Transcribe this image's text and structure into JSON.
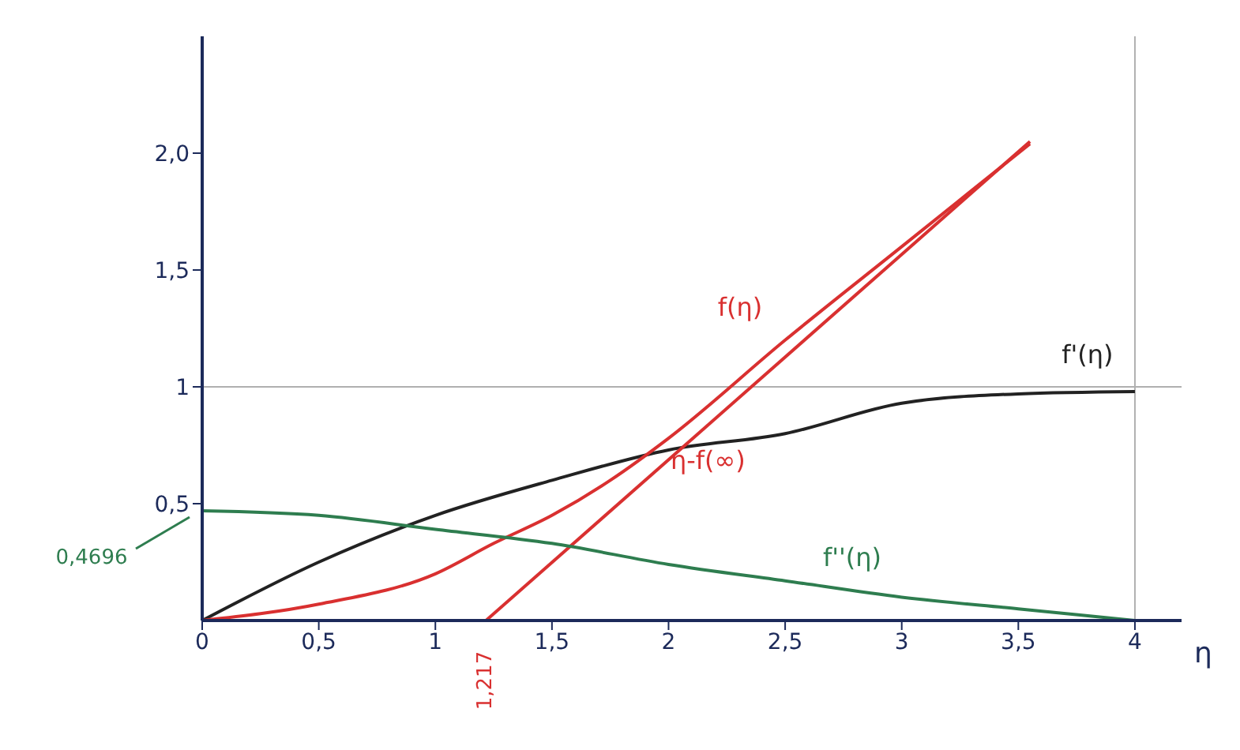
{
  "chart_data": {
    "type": "line",
    "xlabel": "η",
    "xlim": [
      0,
      4.2
    ],
    "ylim": [
      0,
      2.5
    ],
    "xticks": [
      0,
      {
        "value": 0.5,
        "label": "0,5"
      },
      1,
      {
        "value": 1.5,
        "label": "1,5"
      },
      2,
      {
        "value": 2.5,
        "label": "2,5"
      },
      3,
      {
        "value": 3.5,
        "label": "3,5"
      },
      4
    ],
    "yticks": [
      {
        "value": 0.5,
        "label": "0,5"
      },
      1,
      {
        "value": 1.5,
        "label": "1,5"
      },
      {
        "value": 2,
        "label": "2,0"
      }
    ],
    "grid": false,
    "series": [
      {
        "name": "f'(η)",
        "color": "#222222",
        "x": [
          0,
          0.5,
          1,
          1.5,
          2,
          2.5,
          3,
          3.5,
          4
        ],
        "values": [
          0,
          0.25,
          0.45,
          0.6,
          0.73,
          0.8,
          0.93,
          0.97,
          0.98
        ]
      },
      {
        "name": "f(η)",
        "color": "#d93030",
        "x": [
          0,
          0.5,
          1,
          1.25,
          1.5,
          1.75,
          2,
          2.5,
          3,
          3.55
        ],
        "values": [
          0,
          0.07,
          0.2,
          0.33,
          0.45,
          0.6,
          0.78,
          1.2,
          1.6,
          2.04
        ]
      },
      {
        "name": "η-f(∞)",
        "color": "#d93030",
        "x": [
          1.217,
          3.55
        ],
        "values": [
          0,
          2.05
        ]
      },
      {
        "name": "f''(η)",
        "color": "#2e7d4f",
        "x": [
          0,
          0.5,
          1,
          1.5,
          2,
          2.5,
          3,
          3.5,
          4
        ],
        "values": [
          0.4696,
          0.45,
          0.39,
          0.33,
          0.24,
          0.17,
          0.1,
          0.05,
          0
        ]
      }
    ],
    "ref_lines": [
      {
        "axis": "y",
        "value": 1,
        "color": "#b0b0b0"
      },
      {
        "axis": "x",
        "value": 4,
        "color": "#b0b0b0"
      }
    ],
    "annotations": [
      {
        "text": "0,4696",
        "x": 0,
        "y": 0.4696
      },
      {
        "text": "1,217",
        "x": 1.217,
        "y": 0
      }
    ]
  }
}
